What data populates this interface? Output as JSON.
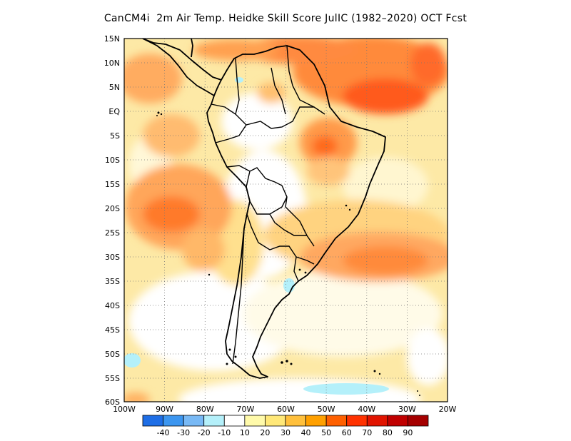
{
  "title": "CanCM4i  2m Air Temp. Heidke Skill Score JulIC (1982–2020) OCT Fcst",
  "lat_labels": [
    "15N",
    "10N",
    "5N",
    "EQ",
    "5S",
    "10S",
    "15S",
    "20S",
    "25S",
    "30S",
    "35S",
    "40S",
    "45S",
    "50S",
    "55S",
    "60S"
  ],
  "lon_labels": [
    "100W",
    "90W",
    "80W",
    "70W",
    "60W",
    "50W",
    "40W",
    "30W",
    "20W"
  ],
  "colorbar": {
    "labels": [
      "-40",
      "-30",
      "-20",
      "-10",
      "10",
      "20",
      "30",
      "40",
      "50",
      "60",
      "70",
      "80",
      "90"
    ],
    "colors": [
      "#1e6ee6",
      "#3c96f0",
      "#78b9f5",
      "#b4f0fa",
      "#ffffff",
      "#fffaaa",
      "#ffe878",
      "#ffc03c",
      "#ffa000",
      "#ff6000",
      "#ff3200",
      "#e11400",
      "#c00000",
      "#a50000"
    ]
  },
  "map": {
    "extent": {
      "lon_min": -100,
      "lon_max": -20,
      "lat_min": -60,
      "lat_max": 15
    },
    "background_fill": "#fde9a6"
  }
}
